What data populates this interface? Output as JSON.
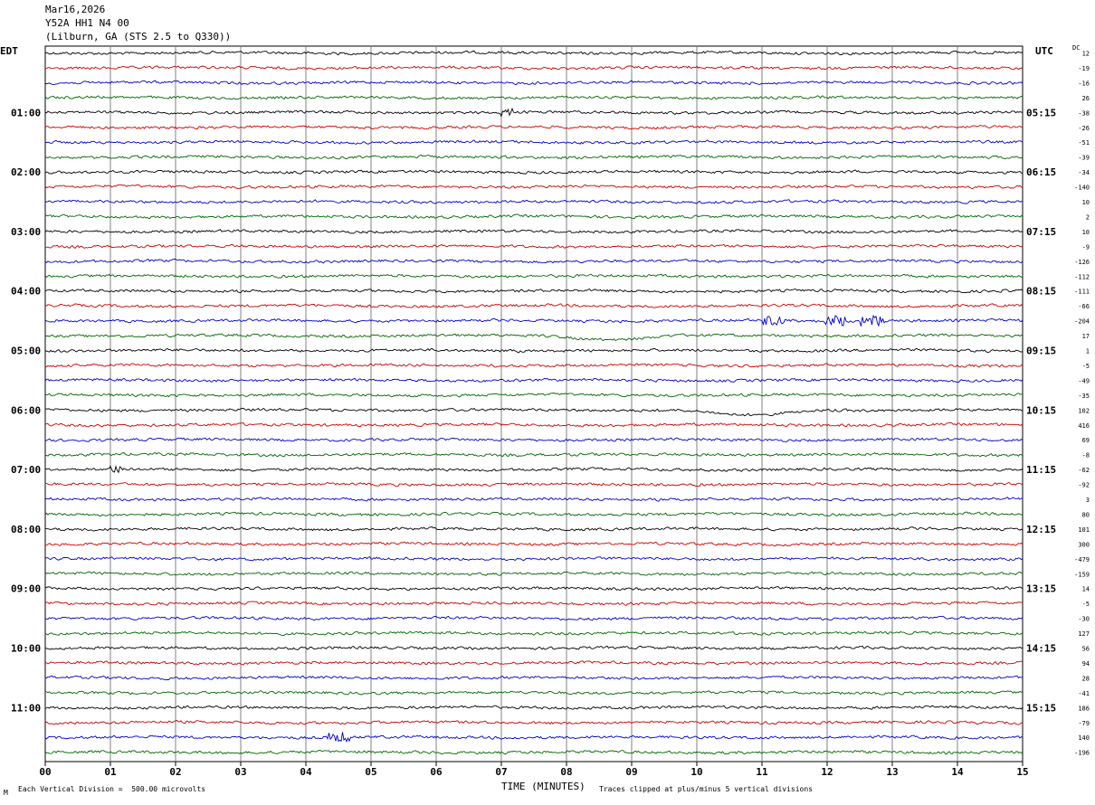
{
  "header": {
    "date": "Mar16,2026",
    "station": "Y52A HH1 N4 00",
    "location": "(Lilburn, GA (STS 2.5 to Q330))"
  },
  "labels": {
    "left_tz": "EDT",
    "right_tz": "UTC",
    "dc": "DC",
    "xlabel": "TIME (MINUTES)",
    "scale_note": "Each Vertical Division =  500.00 microvolts",
    "clip_note": "Traces clipped at plus/minus 5 vertical divisions",
    "corner_mark": "M"
  },
  "colors": {
    "trace_cycle": [
      "#000000",
      "#cc0000",
      "#0000cc",
      "#006600"
    ],
    "grid": "#808080",
    "frame": "#000000"
  },
  "chart_data": {
    "type": "line",
    "title": "Mar16,2026",
    "xlabel": "TIME (MINUTES)",
    "xlim": [
      0,
      15
    ],
    "x_ticks": [
      "00",
      "01",
      "02",
      "03",
      "04",
      "05",
      "06",
      "07",
      "08",
      "09",
      "10",
      "11",
      "12",
      "13",
      "14",
      "15"
    ],
    "trace_count": 48,
    "grid": true,
    "left_hour_labels": [
      {
        "trace_index": 4,
        "label": "01:00"
      },
      {
        "trace_index": 8,
        "label": "02:00"
      },
      {
        "trace_index": 12,
        "label": "03:00"
      },
      {
        "trace_index": 16,
        "label": "04:00"
      },
      {
        "trace_index": 20,
        "label": "05:00"
      },
      {
        "trace_index": 24,
        "label": "06:00"
      },
      {
        "trace_index": 28,
        "label": "07:00"
      },
      {
        "trace_index": 32,
        "label": "08:00"
      },
      {
        "trace_index": 36,
        "label": "09:00"
      },
      {
        "trace_index": 40,
        "label": "10:00"
      },
      {
        "trace_index": 44,
        "label": "11:00"
      }
    ],
    "right_hour_labels": [
      {
        "trace_index": 4,
        "label": "05:15"
      },
      {
        "trace_index": 8,
        "label": "06:15"
      },
      {
        "trace_index": 12,
        "label": "07:15"
      },
      {
        "trace_index": 16,
        "label": "08:15"
      },
      {
        "trace_index": 20,
        "label": "09:15"
      },
      {
        "trace_index": 24,
        "label": "10:15"
      },
      {
        "trace_index": 28,
        "label": "11:15"
      },
      {
        "trace_index": 32,
        "label": "12:15"
      },
      {
        "trace_index": 36,
        "label": "13:15"
      },
      {
        "trace_index": 40,
        "label": "14:15"
      },
      {
        "trace_index": 44,
        "label": "15:15"
      }
    ],
    "dc_offsets": [
      "12",
      "-19",
      "-16",
      "26",
      "-38",
      "-26",
      "-51",
      "-39",
      "-34",
      "-140",
      "10",
      "2",
      "10",
      "-9",
      "-126",
      "-112",
      "-111",
      "-66",
      "-204",
      "17",
      "1",
      "-5",
      "-49",
      "-35",
      "102",
      "416",
      "69",
      "-8",
      "-62",
      "-92",
      "3",
      "80",
      "101",
      "300",
      "-479",
      "-159",
      "14",
      "-5",
      "-30",
      "127",
      "56",
      "94",
      "28",
      "-41",
      "186",
      "-79",
      "140",
      "-196"
    ],
    "events": [
      {
        "trace_index": 4,
        "minute": 7.1,
        "kind": "spike"
      },
      {
        "trace_index": 18,
        "minute": 11.2,
        "kind": "burst"
      },
      {
        "trace_index": 18,
        "minute": 12.1,
        "kind": "burst"
      },
      {
        "trace_index": 18,
        "minute": 12.7,
        "kind": "burst"
      },
      {
        "trace_index": 19,
        "minute": 8.7,
        "kind": "wave"
      },
      {
        "trace_index": 24,
        "minute": 10.8,
        "kind": "wave"
      },
      {
        "trace_index": 28,
        "minute": 1.1,
        "kind": "spike"
      },
      {
        "trace_index": 46,
        "minute": 4.5,
        "kind": "burst"
      }
    ]
  }
}
